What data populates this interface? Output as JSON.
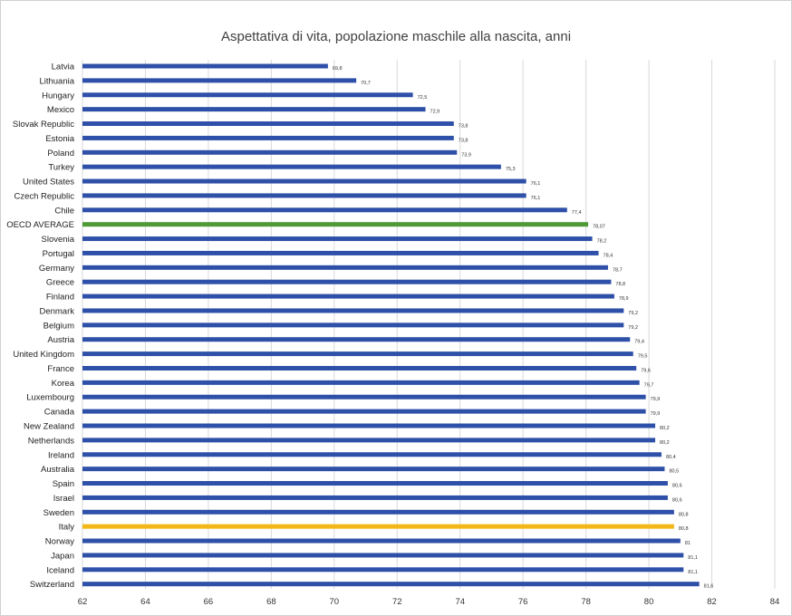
{
  "chart_data": {
    "type": "bar",
    "orientation": "horizontal",
    "title": "Aspettativa di vita, popolazione maschile alla nascita, anni",
    "xlim": [
      62,
      84
    ],
    "xticks": [
      62,
      64,
      66,
      68,
      70,
      72,
      74,
      76,
      78,
      80,
      82,
      84
    ],
    "grid": true,
    "legend": "none",
    "colors": {
      "default": "#2e50a8",
      "oecd": "#4f9a36",
      "italy": "#f3b817",
      "grid": "#d9d9d9"
    },
    "categories": [
      "Latvia",
      "Lithuania",
      "Hungary",
      "Mexico",
      "Slovak Republic",
      "Estonia",
      "Poland",
      "Turkey",
      "United States",
      "Czech Republic",
      "Chile",
      "OECD AVERAGE",
      "Slovenia",
      "Portugal",
      "Germany",
      "Greece",
      "Finland",
      "Denmark",
      "Belgium",
      "Austria",
      "United Kingdom",
      "France",
      "Korea",
      "Luxembourg",
      "Canada",
      "New Zealand",
      "Netherlands",
      "Ireland",
      "Australia",
      "Spain",
      "Israel",
      "Sweden",
      "Italy",
      "Norway",
      "Japan",
      "Iceland",
      "Switzerland"
    ],
    "values": [
      69.8,
      70.7,
      72.5,
      72.9,
      73.8,
      73.8,
      73.9,
      75.3,
      76.1,
      76.1,
      77.4,
      78.07,
      78.2,
      78.4,
      78.7,
      78.8,
      78.9,
      79.2,
      79.2,
      79.4,
      79.5,
      79.6,
      79.7,
      79.9,
      79.9,
      80.2,
      80.2,
      80.4,
      80.5,
      80.6,
      80.6,
      80.8,
      80.8,
      81,
      81.1,
      81.1,
      81.6
    ],
    "labels": [
      "69,8",
      "70,7",
      "72,5",
      "72,9",
      "73,8",
      "73,8",
      "73,9",
      "75,3",
      "76,1",
      "76,1",
      "77,4",
      "78,07",
      "78,2",
      "78,4",
      "78,7",
      "78,8",
      "78,9",
      "79,2",
      "79,2",
      "79,4",
      "79,5",
      "79,6",
      "79,7",
      "79,9",
      "79,9",
      "80,2",
      "80,2",
      "80,4",
      "80,5",
      "80,6",
      "80,6",
      "80,8",
      "80,8",
      "81",
      "81,1",
      "81,1",
      "81,6"
    ],
    "highlight": {
      "OECD AVERAGE": "oecd",
      "Italy": "italy"
    }
  }
}
